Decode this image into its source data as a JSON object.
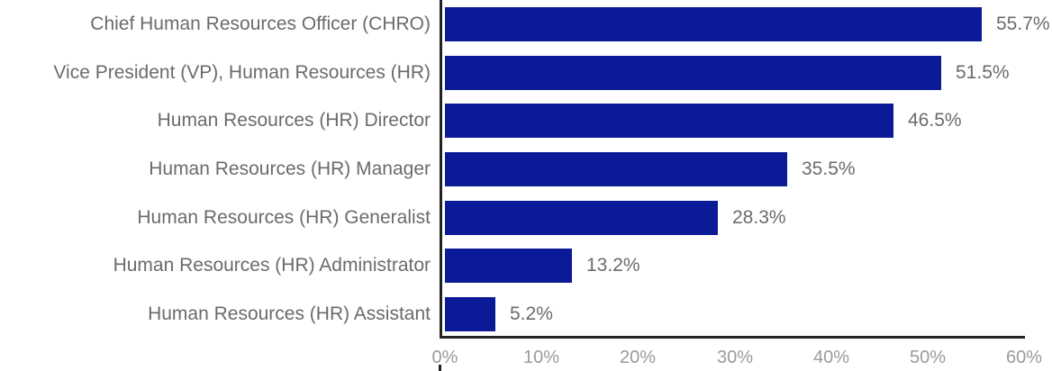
{
  "chart_data": {
    "type": "bar",
    "orientation": "horizontal",
    "title": "",
    "xlabel": "",
    "ylabel": "",
    "categories": [
      "Chief Human Resources Officer (CHRO)",
      "Vice President (VP), Human Resources (HR)",
      "Human Resources (HR) Director",
      "Human Resources (HR) Manager",
      "Human Resources (HR) Generalist",
      "Human Resources (HR) Administrator",
      "Human Resources (HR) Assistant"
    ],
    "values": [
      55.7,
      51.5,
      46.5,
      35.5,
      28.3,
      13.2,
      5.2
    ],
    "value_labels": [
      "55.7%",
      "51.5%",
      "46.5%",
      "35.5%",
      "28.3%",
      "13.2%",
      "5.2%"
    ],
    "x_ticks": [
      "0%",
      "10%",
      "20%",
      "30%",
      "40%",
      "50%",
      "60%"
    ],
    "x_tick_values": [
      0,
      10,
      20,
      30,
      40,
      50,
      60
    ],
    "xlim": [
      0,
      60
    ],
    "grid": false,
    "legend": false,
    "colors": {
      "bar": "#0b1a96",
      "category_label": "#6b6b6b",
      "value_label": "#6b6b6b",
      "tick_label": "#9b9b9b",
      "axis_line": "#222222",
      "background": "#ffffff"
    }
  }
}
